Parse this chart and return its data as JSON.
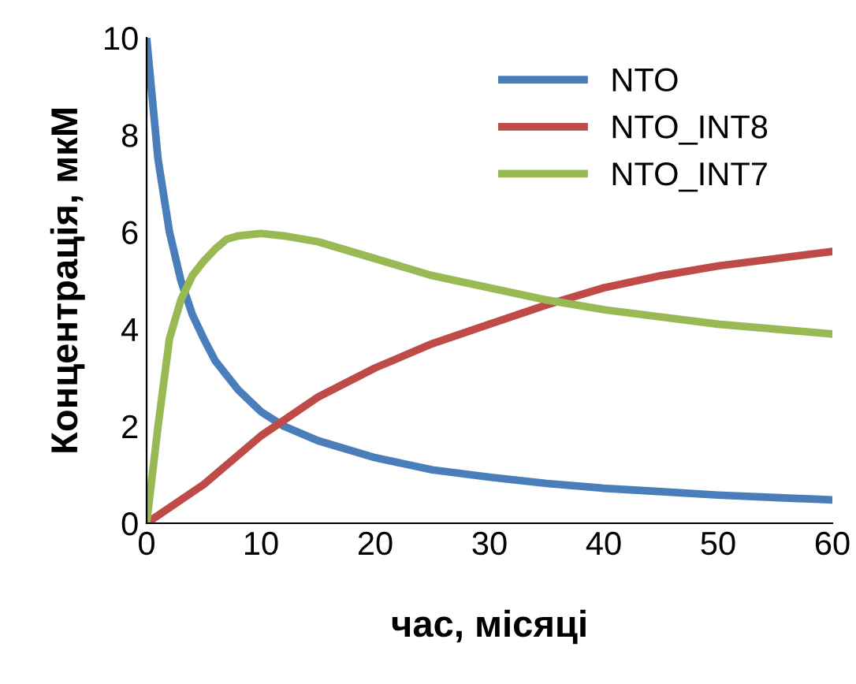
{
  "chart_data": {
    "type": "line",
    "xlabel": "час, місяці",
    "ylabel": "Концентрація, мкМ",
    "xlim": [
      0,
      60
    ],
    "ylim": [
      0,
      10
    ],
    "xticks": [
      0,
      10,
      20,
      30,
      40,
      50,
      60
    ],
    "yticks": [
      0,
      2,
      4,
      6,
      8,
      10
    ],
    "grid": false,
    "legend": "top right",
    "marker": "none",
    "line_style": "solid",
    "series": [
      {
        "name": "NTO",
        "color": "#4a7ebb",
        "x": [
          0,
          1,
          2,
          3,
          4,
          5,
          6,
          8,
          10,
          12,
          15,
          20,
          25,
          30,
          35,
          40,
          45,
          50,
          55,
          60
        ],
        "values": [
          10,
          7.5,
          6,
          5,
          4.3,
          3.8,
          3.35,
          2.75,
          2.3,
          2,
          1.7,
          1.35,
          1.1,
          0.95,
          0.82,
          0.72,
          0.65,
          0.58,
          0.53,
          0.48
        ]
      },
      {
        "name": "NTO_INT8",
        "color": "#be4b48",
        "x": [
          0,
          5,
          10,
          15,
          20,
          25,
          30,
          35,
          40,
          45,
          50,
          55,
          60
        ],
        "values": [
          0,
          0.8,
          1.8,
          2.6,
          3.2,
          3.7,
          4.1,
          4.5,
          4.85,
          5.1,
          5.3,
          5.45,
          5.6
        ]
      },
      {
        "name": "NTO_INT7",
        "color": "#98b954",
        "x": [
          0,
          1,
          2,
          3,
          4,
          5,
          6,
          7,
          8,
          10,
          12,
          15,
          20,
          25,
          30,
          35,
          40,
          45,
          50,
          55,
          60
        ],
        "values": [
          0,
          2,
          3.8,
          4.6,
          5.1,
          5.4,
          5.65,
          5.85,
          5.92,
          5.97,
          5.92,
          5.8,
          5.45,
          5.1,
          4.85,
          4.6,
          4.4,
          4.25,
          4.1,
          4,
          3.9
        ]
      }
    ]
  }
}
